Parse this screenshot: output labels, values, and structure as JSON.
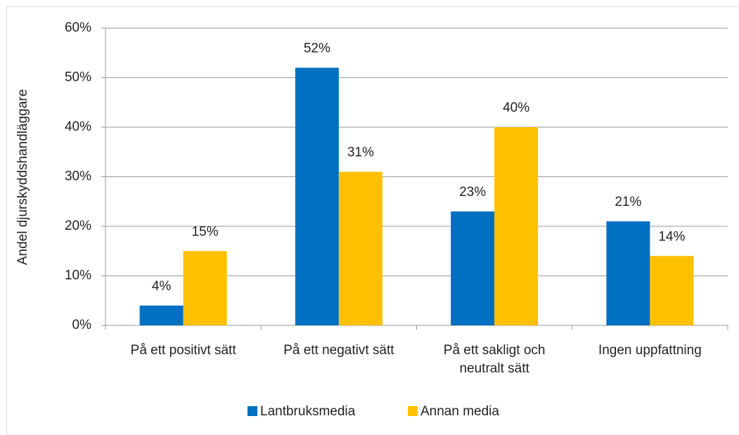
{
  "chart_data": {
    "type": "bar",
    "categories": [
      "På ett positivt sätt",
      "På ett negativt sätt",
      "På ett sakligt och neutralt sätt",
      "Ingen uppfattning"
    ],
    "ylabel": "Andel djurskyddshandläggare",
    "series": [
      {
        "name": "Lantbruksmedia",
        "color": "#0070c0",
        "values": [
          4,
          52,
          23,
          21
        ],
        "value_labels": [
          "4%",
          "52%",
          "23%",
          "21%"
        ]
      },
      {
        "name": "Annan media",
        "color": "#ffc000",
        "values": [
          15,
          31,
          40,
          14
        ],
        "value_labels": [
          "15%",
          "31%",
          "40%",
          "14%"
        ]
      }
    ],
    "ylim": [
      0,
      60
    ],
    "yticks": [
      {
        "value": 0,
        "label": "0%"
      },
      {
        "value": 10,
        "label": "10%"
      },
      {
        "value": 20,
        "label": "20%"
      },
      {
        "value": 30,
        "label": "30%"
      },
      {
        "value": 40,
        "label": "40%"
      },
      {
        "value": 50,
        "label": "50%"
      },
      {
        "value": 60,
        "label": "60%"
      }
    ],
    "grid": true,
    "legend": "bottom"
  }
}
